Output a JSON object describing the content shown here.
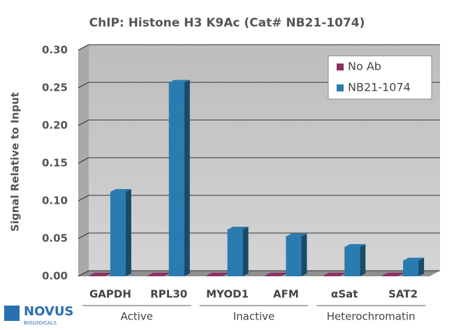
{
  "chart_data": {
    "type": "bar3d",
    "title": "ChIP: Histone H3 K9Ac (Cat# NB21-1074)",
    "y_label": "Signal Relative to Input",
    "categories": [
      "GAPDH",
      "RPL30",
      "MYOD1",
      "AFM",
      "αSat",
      "SAT2"
    ],
    "groups": [
      {
        "label": "Active",
        "categories": [
          "GAPDH",
          "RPL30"
        ]
      },
      {
        "label": "Inactive",
        "categories": [
          "MYOD1",
          "AFM"
        ]
      },
      {
        "label": "Heterochromatin",
        "categories": [
          "αSat",
          "SAT2"
        ]
      }
    ],
    "series": [
      {
        "name": "No Ab",
        "color": "#8e2f64",
        "values": [
          0.001,
          0.001,
          0.001,
          0.001,
          0.001,
          0.001
        ]
      },
      {
        "name": "NB21-1074",
        "color": "#2a7bb0",
        "values": [
          0.112,
          0.257,
          0.062,
          0.053,
          0.039,
          0.021
        ]
      }
    ],
    "ylim": [
      0,
      0.3
    ],
    "yticks": [
      {
        "value": 0,
        "label": "0.00"
      },
      {
        "value": 0.05,
        "label": "0.05"
      },
      {
        "value": 0.1,
        "label": "0.10"
      },
      {
        "value": 0.15,
        "label": "0.15"
      },
      {
        "value": 0.2,
        "label": "0.20"
      },
      {
        "value": 0.25,
        "label": "0.25"
      },
      {
        "value": 0.3,
        "label": "0.30"
      }
    ],
    "grid": true,
    "legend": "top-right"
  },
  "logo": {
    "name": "NOVUS",
    "sub": "BIOLOGICALS"
  }
}
